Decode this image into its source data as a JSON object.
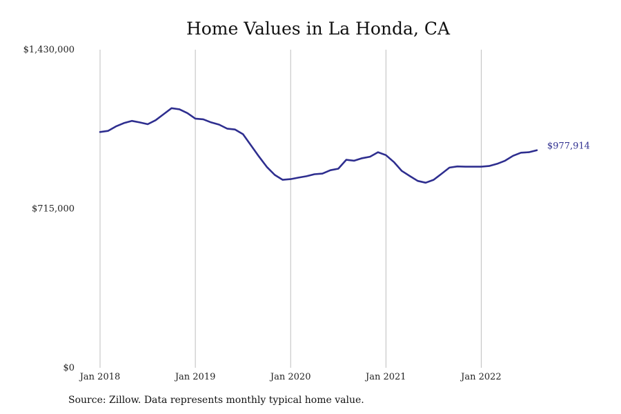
{
  "chart_data": {
    "type": "line",
    "title": "Home Values in La Honda, CA",
    "source": "Source: Zillow. Data represents monthly typical home value.",
    "xlabel": "",
    "ylabel": "",
    "ylim": [
      0,
      1430000
    ],
    "xlim": [
      "2018-01",
      "2022-08"
    ],
    "y_ticks": [
      {
        "value": 0,
        "label": "$0"
      },
      {
        "value": 715000,
        "label": "$715,000"
      },
      {
        "value": 1430000,
        "label": "$1,430,000"
      }
    ],
    "x_ticks": [
      {
        "date": "2018-01",
        "label": "Jan 2018"
      },
      {
        "date": "2019-01",
        "label": "Jan 2019"
      },
      {
        "date": "2020-01",
        "label": "Jan 2020"
      },
      {
        "date": "2021-01",
        "label": "Jan 2021"
      },
      {
        "date": "2022-01",
        "label": "Jan 2022"
      }
    ],
    "grid": "vertical",
    "line_color": "#2e2e8f",
    "end_label": "$977,914",
    "series": [
      {
        "x": [
          "2018-01",
          "2018-02",
          "2018-03",
          "2018-04",
          "2018-05",
          "2018-06",
          "2018-07",
          "2018-08",
          "2018-09",
          "2018-10",
          "2018-11",
          "2018-12",
          "2019-01",
          "2019-02",
          "2019-03",
          "2019-04",
          "2019-05",
          "2019-06",
          "2019-07",
          "2019-08",
          "2019-09",
          "2019-10",
          "2019-11",
          "2019-12",
          "2020-01",
          "2020-02",
          "2020-03",
          "2020-04",
          "2020-05",
          "2020-06",
          "2020-07",
          "2020-08",
          "2020-09",
          "2020-10",
          "2020-11",
          "2020-12",
          "2021-01",
          "2021-02",
          "2021-03",
          "2021-04",
          "2021-05",
          "2021-06",
          "2021-07",
          "2021-08",
          "2021-09",
          "2021-10",
          "2021-11",
          "2021-12",
          "2022-01",
          "2022-02",
          "2022-03",
          "2022-04",
          "2022-05",
          "2022-06",
          "2022-07",
          "2022-08"
        ],
        "values": [
          1060000,
          1065000,
          1085000,
          1100000,
          1110000,
          1103000,
          1095000,
          1113000,
          1140000,
          1167000,
          1162000,
          1145000,
          1120000,
          1117000,
          1103000,
          1093000,
          1075000,
          1071000,
          1050000,
          1000000,
          950000,
          903000,
          867000,
          845000,
          848000,
          855000,
          861000,
          870000,
          873000,
          888000,
          895000,
          935000,
          931000,
          942000,
          949000,
          969000,
          956000,
          925000,
          885000,
          862000,
          840000,
          832000,
          845000,
          872000,
          900000,
          905000,
          904000,
          904000,
          904000,
          907000,
          917000,
          931000,
          953000,
          967000,
          969000,
          977914
        ]
      }
    ]
  }
}
